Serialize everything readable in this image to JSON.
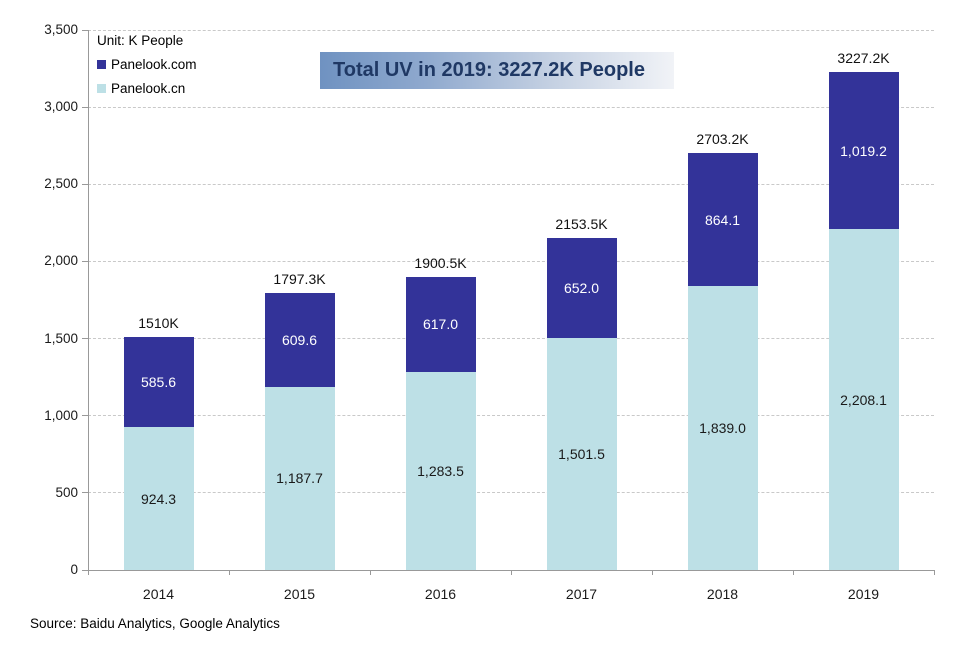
{
  "legend": {
    "unit_label": "Unit: K People",
    "items": [
      {
        "label": "Panelook.com",
        "color": "#333399"
      },
      {
        "label": "Panelook.cn",
        "color": "#BDE0E6"
      }
    ]
  },
  "source": "Source: Baidu Analytics, Google Analytics",
  "colors": {
    "bar_com": "#333399",
    "bar_cn": "#BDE0E6",
    "banner_text": "#1F3864",
    "banner_gradient_start": "#6F92C1",
    "banner_gradient_mid1": "#8FA9CE",
    "banner_gradient_mid2": "#C4D0E2",
    "banner_gradient_end": "#F1F3F7",
    "axis": "#999999",
    "gridline": "#C9C9C9"
  },
  "chart_data": {
    "type": "bar",
    "subtype": "stacked",
    "title": "Total UV in 2019: 3227.2K People",
    "unit": "K People",
    "categories": [
      "2014",
      "2015",
      "2016",
      "2017",
      "2018",
      "2019"
    ],
    "series": [
      {
        "name": "Panelook.cn",
        "color": "#BDE0E6",
        "label_color": "#1a1a1a",
        "values": [
          924.3,
          1187.7,
          1283.5,
          1501.5,
          1839.0,
          2208.1
        ],
        "labels": [
          "924.3",
          "1,187.7",
          "1,283.5",
          "1,501.5",
          "1,839.0",
          "2,208.1"
        ]
      },
      {
        "name": "Panelook.com",
        "color": "#333399",
        "label_color": "#ffffff",
        "values": [
          585.6,
          609.6,
          617.0,
          652.0,
          864.1,
          1019.2
        ],
        "labels": [
          "585.6",
          "609.6",
          "617.0",
          "652.0",
          "864.1",
          "1,019.2"
        ]
      }
    ],
    "totals": [
      "1510K",
      "1797.3K",
      "1900.5K",
      "2153.5K",
      "2703.2K",
      "3227.2K"
    ],
    "totals_values": [
      1510,
      1797.3,
      1900.5,
      2153.5,
      2703.2,
      3227.2
    ],
    "ylim": [
      0,
      3500
    ],
    "ytick_step": 500,
    "ytick_labels": [
      "0",
      "500",
      "1,000",
      "1,500",
      "2,000",
      "2,500",
      "3,000",
      "3,500"
    ],
    "grid": "dashed-horizontal",
    "legend_position": "top-left"
  }
}
